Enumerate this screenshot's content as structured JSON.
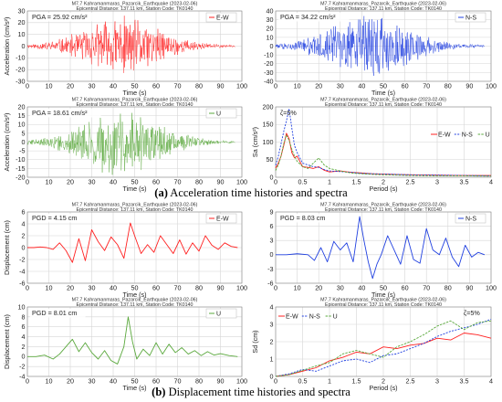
{
  "captions": {
    "a_letter": "(a)",
    "a_text": " Acceleration time histories and spectra",
    "b_letter": "(b)",
    "b_text": " Displacement time histories and spectra"
  },
  "colors": {
    "ew": "#ff2020",
    "ns": "#2040e0",
    "u": "#5aa83c",
    "grid": "#d6d6d6"
  },
  "chart_data": [
    {
      "id": "acc-ew",
      "type": "line",
      "kind": "acc",
      "title1": "M7.7 Kahramanmaras_Pazarcik_Earthquake (2023-02-06)",
      "title2": "Epicentral Distance: 137.11 km, Station Code: TK0140",
      "xlabel": "Time (s)",
      "ylabel": "Acceleration (cm/s²)",
      "xlim": [
        0,
        100
      ],
      "ylim": [
        -30,
        30
      ],
      "xticks": [
        0,
        10,
        20,
        30,
        40,
        50,
        60,
        70,
        80,
        90,
        100
      ],
      "yticks": [
        -30,
        -20,
        -10,
        0,
        10,
        20,
        30
      ],
      "annotation": "PGA = 25.92 cm/s²",
      "series": [
        {
          "name": "E-W",
          "color": "#ff2020",
          "peak": 25.92,
          "duration": 97
        }
      ]
    },
    {
      "id": "acc-ns",
      "type": "line",
      "kind": "acc",
      "title1": "M7.7 Kahramanmaras_Pazarcik_Earthquake (2023-02-06)",
      "title2": "Epicentral Distance: 137.11 km, Station Code: TK0140",
      "xlabel": "Time (s)",
      "ylabel": "",
      "xlim": [
        0,
        100
      ],
      "ylim": [
        -40,
        40
      ],
      "xticks": [
        0,
        10,
        20,
        30,
        40,
        50,
        60,
        70,
        80,
        90,
        100
      ],
      "yticks": [
        -40,
        -30,
        -20,
        -10,
        0,
        10,
        20,
        30,
        40
      ],
      "annotation": "PGA = 34.22 cm/s²",
      "series": [
        {
          "name": "N-S",
          "color": "#2040e0",
          "peak": 34.22,
          "duration": 97
        }
      ]
    },
    {
      "id": "acc-u",
      "type": "line",
      "kind": "acc",
      "title1": "M7.7 Kahramanmaras_Pazarcik_Earthquake (2023-02-06)",
      "title2": "Epicentral Distance: 137.11 km, Station Code: TK0140",
      "xlabel": "Time (s)",
      "ylabel": "Acceleration (cm/s²)",
      "xlim": [
        0,
        100
      ],
      "ylim": [
        -20,
        20
      ],
      "xticks": [
        0,
        10,
        20,
        30,
        40,
        50,
        60,
        70,
        80,
        90,
        100
      ],
      "yticks": [
        -20,
        -15,
        -10,
        -5,
        0,
        5,
        10,
        15,
        20
      ],
      "annotation": "PGA = 18.61 cm/s²",
      "series": [
        {
          "name": "U",
          "color": "#5aa83c",
          "peak": 18.61,
          "duration": 97
        }
      ]
    },
    {
      "id": "acc-spec",
      "type": "line",
      "kind": "spec",
      "title1": "M7.7 Kahramanmaras_Pazarcik_Earthquake (2023-02-06)",
      "title2": "Epicentral Distance: 137.11 km, Station Code: TK0140",
      "xlabel": "Period (s)",
      "ylabel": "Sa (cm/s²)",
      "xlim": [
        0,
        4
      ],
      "ylim": [
        0,
        200
      ],
      "xticks": [
        0,
        0.5,
        1,
        1.5,
        2,
        2.5,
        3,
        3.5,
        4
      ],
      "yticks": [
        0,
        50,
        100,
        150,
        200
      ],
      "annotation": "ζ=5%",
      "series": [
        {
          "name": "E-W",
          "color": "#ff2020",
          "x": [
            0,
            0.05,
            0.1,
            0.15,
            0.2,
            0.25,
            0.3,
            0.35,
            0.4,
            0.45,
            0.5,
            0.6,
            0.7,
            0.8,
            0.9,
            1,
            1.2,
            1.4,
            1.6,
            1.8,
            2,
            2.5,
            3,
            3.5,
            4
          ],
          "y": [
            26,
            40,
            60,
            90,
            125,
            110,
            70,
            55,
            60,
            45,
            30,
            28,
            25,
            30,
            20,
            15,
            18,
            14,
            12,
            10,
            9,
            7,
            6,
            5,
            5
          ]
        },
        {
          "name": "N-S",
          "color": "#2040e0",
          "x": [
            0,
            0.05,
            0.1,
            0.15,
            0.2,
            0.25,
            0.3,
            0.35,
            0.4,
            0.45,
            0.5,
            0.6,
            0.7,
            0.8,
            0.9,
            1,
            1.2,
            1.4,
            1.6,
            1.8,
            2,
            2.5,
            3,
            3.5,
            4
          ],
          "y": [
            34,
            60,
            95,
            130,
            160,
            195,
            140,
            90,
            70,
            55,
            40,
            35,
            30,
            28,
            22,
            18,
            16,
            14,
            11,
            10,
            9,
            7,
            6,
            5,
            4
          ]
        },
        {
          "name": "U",
          "color": "#5aa83c",
          "x": [
            0,
            0.05,
            0.1,
            0.15,
            0.2,
            0.25,
            0.3,
            0.35,
            0.4,
            0.45,
            0.5,
            0.6,
            0.7,
            0.8,
            0.9,
            1,
            1.2,
            1.4,
            1.6,
            1.8,
            2,
            2.5,
            3,
            3.5,
            4
          ],
          "y": [
            19,
            35,
            60,
            95,
            120,
            105,
            80,
            60,
            45,
            38,
            30,
            25,
            40,
            55,
            35,
            25,
            18,
            12,
            10,
            8,
            7,
            5,
            4,
            4,
            3
          ]
        }
      ]
    },
    {
      "id": "disp-ew",
      "type": "line",
      "kind": "disp",
      "title1": "M7.7 Kahramanmaras_Pazarcik_Earthquake (2023-02-06)",
      "title2": "Epicentral Distance: 137.11 km, Station Code: TK0140",
      "xlabel": "Time (s)",
      "ylabel": "Displacement (cm)",
      "xlim": [
        0,
        100
      ],
      "ylim": [
        -6,
        6
      ],
      "xticks": [
        0,
        10,
        20,
        30,
        40,
        50,
        60,
        70,
        80,
        90,
        100
      ],
      "yticks": [
        -6,
        -4,
        -2,
        0,
        2,
        4,
        6
      ],
      "annotation": "PGD = 4.15 cm",
      "series": [
        {
          "name": "E-W",
          "color": "#ff2020",
          "x": [
            0,
            3,
            6,
            9,
            12,
            15,
            18,
            21,
            24,
            27,
            30,
            33,
            36,
            39,
            42,
            45,
            48,
            50,
            53,
            56,
            59,
            62,
            65,
            68,
            71,
            74,
            77,
            80,
            83,
            86,
            89,
            92,
            95,
            98
          ],
          "y": [
            0,
            0,
            0.1,
            0,
            -0.3,
            0.8,
            -0.5,
            -2.5,
            1.5,
            -2.2,
            3,
            1,
            -0.5,
            1.8,
            0.5,
            -1.8,
            4.15,
            2,
            -1,
            0.5,
            -0.8,
            2,
            0.5,
            -1,
            1.3,
            -1.1,
            0.8,
            -0.6,
            2,
            0.4,
            -0.3,
            0.8,
            0.2,
            0
          ]
        }
      ]
    },
    {
      "id": "disp-ns",
      "type": "line",
      "kind": "disp",
      "title1": "M7.7 Kahramanmaras_Pazarcik_Earthquake (2023-02-06)",
      "title2": "Epicentral Distance: 137.11 km, Station Code: TK0140",
      "xlabel": "Time (s)",
      "ylabel": "",
      "xlim": [
        0,
        100
      ],
      "ylim": [
        -6,
        9
      ],
      "xticks": [
        0,
        10,
        20,
        30,
        40,
        50,
        60,
        70,
        80,
        90,
        100
      ],
      "yticks": [
        -6,
        -3,
        0,
        3,
        6,
        9
      ],
      "annotation": "PGD = 8.03 cm",
      "series": [
        {
          "name": "N-S",
          "color": "#2040e0",
          "x": [
            0,
            5,
            10,
            15,
            18,
            21,
            24,
            27,
            30,
            33,
            36,
            39,
            41,
            43,
            45,
            47,
            49,
            52,
            55,
            58,
            61,
            64,
            67,
            70,
            73,
            76,
            79,
            82,
            85,
            88,
            91,
            94,
            97
          ],
          "y": [
            0,
            0,
            0.2,
            0,
            -1.2,
            1.5,
            -1.5,
            2.8,
            1,
            2.5,
            -1.5,
            8.03,
            3,
            -1.5,
            -5,
            -2,
            0,
            4,
            1,
            -2,
            4,
            -1,
            -1.8,
            5.5,
            1,
            0,
            3.5,
            -0.5,
            -2.5,
            2,
            -0.5,
            0.5,
            0
          ]
        }
      ]
    },
    {
      "id": "disp-u",
      "type": "line",
      "kind": "disp",
      "title1": "M7.7 Kahramanmaras_Pazarcik_Earthquake (2023-02-06)",
      "title2": "Epicentral Distance: 137.11 km, Station Code: TK0140",
      "xlabel": "Time (s)",
      "ylabel": "Displacement (cm)",
      "xlim": [
        0,
        100
      ],
      "ylim": [
        -4,
        10
      ],
      "xticks": [
        0,
        10,
        20,
        30,
        40,
        50,
        60,
        70,
        80,
        90,
        100
      ],
      "yticks": [
        -4,
        -2,
        0,
        2,
        4,
        6,
        8,
        10
      ],
      "annotation": "PGD = 8.01 cm",
      "series": [
        {
          "name": "U",
          "color": "#5aa83c",
          "x": [
            0,
            4,
            8,
            12,
            15,
            18,
            21,
            24,
            27,
            30,
            33,
            36,
            39,
            42,
            45,
            47,
            49,
            51,
            54,
            57,
            60,
            63,
            66,
            69,
            72,
            75,
            78,
            81,
            84,
            87,
            90,
            94,
            98
          ],
          "y": [
            0,
            0,
            0.3,
            -0.5,
            0.5,
            2,
            3.5,
            1,
            2.8,
            0.8,
            -0.5,
            1.2,
            -0.8,
            -1.5,
            2,
            8.01,
            3,
            -0.5,
            1.5,
            0.2,
            2.8,
            0.5,
            2.5,
            0.8,
            1.8,
            0.5,
            1.2,
            0.2,
            1,
            0.3,
            0.6,
            0.2,
            0
          ]
        }
      ]
    },
    {
      "id": "disp-spec",
      "type": "line",
      "kind": "spec",
      "title1": "M7.7 Kahramanmaras_Pazarcik_Earthquake (2023-02-06)",
      "title2": "Epicentral Distance: 137.11 km, Station Code: TK0140",
      "xlabel": "Period (s)",
      "ylabel": "Sd (cm)",
      "xlim": [
        0,
        4
      ],
      "ylim": [
        0,
        4
      ],
      "xticks": [
        0,
        0.5,
        1,
        1.5,
        2,
        2.5,
        3,
        3.5,
        4
      ],
      "yticks": [
        0,
        1,
        2,
        3,
        4
      ],
      "annotation": "ζ=5%",
      "series": [
        {
          "name": "E-W",
          "color": "#ff2020",
          "x": [
            0,
            0.25,
            0.5,
            0.75,
            1,
            1.25,
            1.5,
            1.75,
            2,
            2.25,
            2.5,
            2.75,
            3,
            3.25,
            3.5,
            3.75,
            4
          ],
          "y": [
            0,
            0.1,
            0.3,
            0.5,
            0.9,
            1.1,
            1.4,
            1.3,
            1.7,
            1.6,
            1.8,
            1.9,
            2.2,
            2.1,
            2.5,
            2.4,
            2.2
          ]
        },
        {
          "name": "N-S",
          "color": "#2040e0",
          "x": [
            0,
            0.25,
            0.5,
            0.75,
            1,
            1.25,
            1.5,
            1.75,
            2,
            2.25,
            2.5,
            2.75,
            3,
            3.25,
            3.5,
            3.75,
            4
          ],
          "y": [
            0,
            0.15,
            0.4,
            0.3,
            0.6,
            0.9,
            1.0,
            0.8,
            1.2,
            1.3,
            1.6,
            1.9,
            2.3,
            2.6,
            2.8,
            3.0,
            3.3
          ]
        },
        {
          "name": "U",
          "color": "#5aa83c",
          "x": [
            0,
            0.25,
            0.5,
            0.75,
            1,
            1.25,
            1.5,
            1.75,
            2,
            2.25,
            2.5,
            2.75,
            3,
            3.25,
            3.5,
            3.75,
            4
          ],
          "y": [
            0,
            0.1,
            0.35,
            0.6,
            0.8,
            1.3,
            1.5,
            1.3,
            1.1,
            1.7,
            2.0,
            2.4,
            2.9,
            3.2,
            2.7,
            3.1,
            3.2
          ]
        }
      ]
    }
  ]
}
